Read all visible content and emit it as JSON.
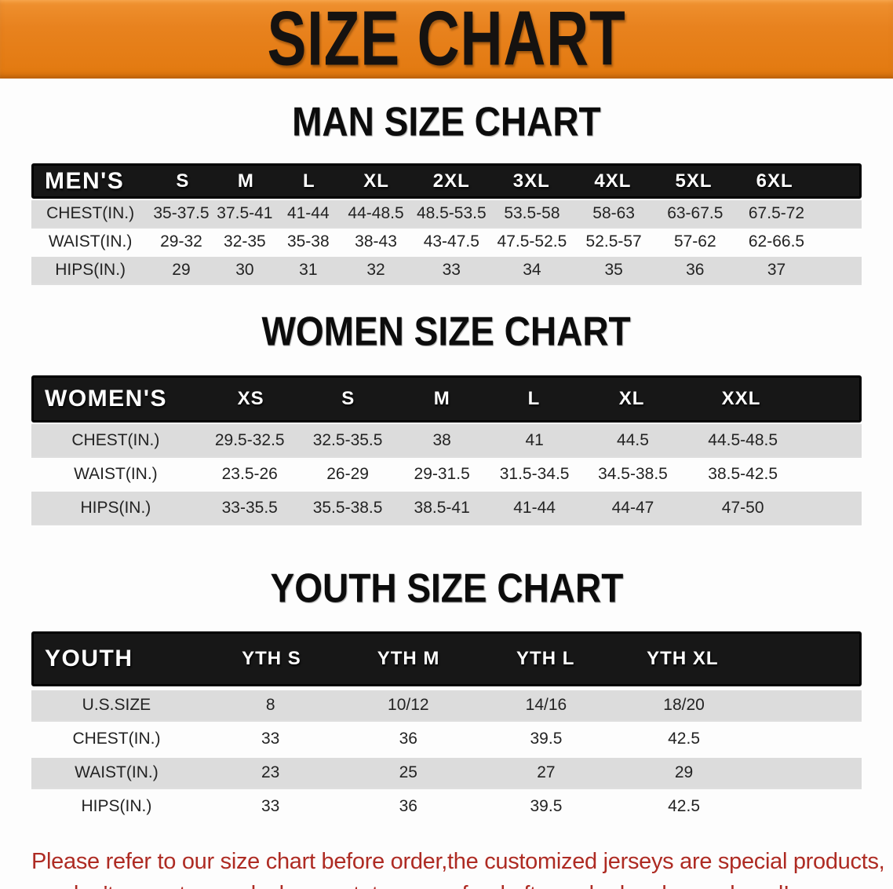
{
  "banner": {
    "title": "SIZE CHART",
    "bg_color": "#E8821E",
    "text_color": "#151210"
  },
  "colors": {
    "table_header_bg": "#171717",
    "row_shade": "#DCDCDC",
    "disclaimer_text": "#AE2B23"
  },
  "man_chart": {
    "heading": "MAN SIZE CHART",
    "table": {
      "label": "MEN'S",
      "columns": [
        "S",
        "M",
        "L",
        "XL",
        "2XL",
        "3XL",
        "4XL",
        "5XL",
        "6XL"
      ],
      "rows": [
        {
          "label": "CHEST(IN.)",
          "values": [
            "35-37.5",
            "37.5-41",
            "41-44",
            "44-48.5",
            "48.5-53.5",
            "53.5-58",
            "58-63",
            "63-67.5",
            "67.5-72"
          ]
        },
        {
          "label": "WAIST(IN.)",
          "values": [
            "29-32",
            "32-35",
            "35-38",
            "38-43",
            "43-47.5",
            "47.5-52.5",
            "52.5-57",
            "57-62",
            "62-66.5"
          ]
        },
        {
          "label": "HIPS(IN.)",
          "values": [
            "29",
            "30",
            "31",
            "32",
            "33",
            "34",
            "35",
            "36",
            "37"
          ]
        }
      ]
    }
  },
  "women_chart": {
    "heading": "WOMEN SIZE CHART",
    "table": {
      "label": "WOMEN'S",
      "columns": [
        "XS",
        "S",
        "M",
        "L",
        "XL",
        "XXL"
      ],
      "rows": [
        {
          "label": "CHEST(IN.)",
          "values": [
            "29.5-32.5",
            "32.5-35.5",
            "38",
            "41",
            "44.5",
            "44.5-48.5"
          ]
        },
        {
          "label": "WAIST(IN.)",
          "values": [
            "23.5-26",
            "26-29",
            "29-31.5",
            "31.5-34.5",
            "34.5-38.5",
            "38.5-42.5"
          ]
        },
        {
          "label": "HIPS(IN.)",
          "values": [
            "33-35.5",
            "35.5-38.5",
            "38.5-41",
            "41-44",
            "44-47",
            "47-50"
          ]
        }
      ]
    }
  },
  "youth_chart": {
    "heading": "YOUTH SIZE CHART",
    "table": {
      "label": "YOUTH",
      "columns": [
        "YTH S",
        "YTH M",
        "YTH L",
        "YTH XL"
      ],
      "rows": [
        {
          "label": "U.S.SIZE",
          "values": [
            "8",
            "10/12",
            "14/16",
            "18/20"
          ]
        },
        {
          "label": "CHEST(IN.)",
          "values": [
            "33",
            "36",
            "39.5",
            "42.5"
          ]
        },
        {
          "label": "WAIST(IN.)",
          "values": [
            "23",
            "25",
            "27",
            "29"
          ]
        },
        {
          "label": "HIPS(IN.)",
          "values": [
            "33",
            "36",
            "39.5",
            "42.5"
          ]
        }
      ]
    }
  },
  "disclaimer": {
    "line1": "Please refer to our size chart before order,the customized jerseys are special products,",
    "line2": "we don't accept cancel, change, teturn or refund after order has been placed!"
  }
}
